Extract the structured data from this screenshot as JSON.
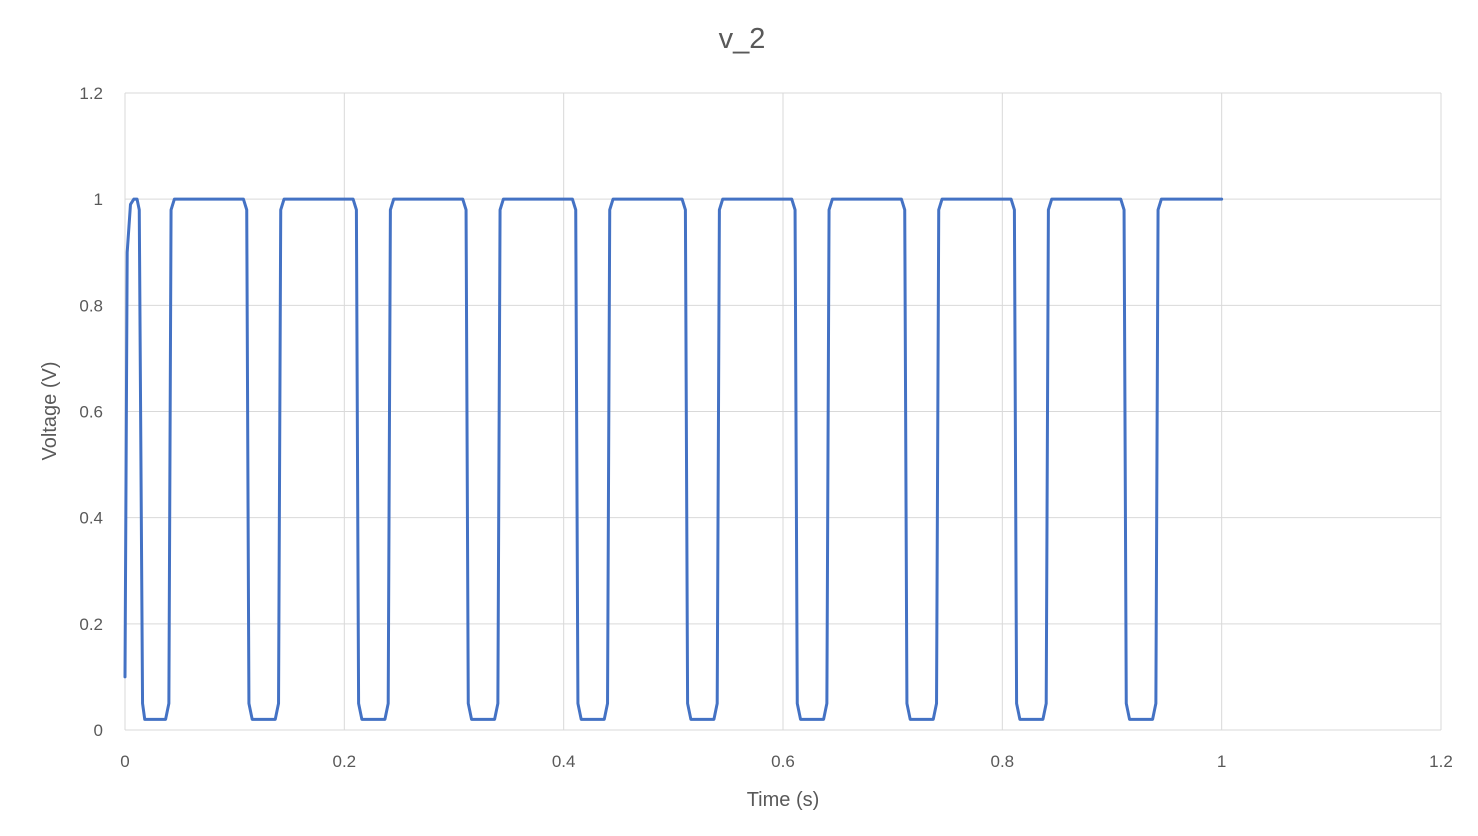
{
  "chart_data": {
    "type": "line",
    "title": "v_2",
    "xlabel": "Time (s)",
    "ylabel": "Voltage (V)",
    "xlim": [
      0,
      1.2
    ],
    "ylim": [
      0,
      1.2
    ],
    "x_ticks": [
      0,
      0.2,
      0.4,
      0.6,
      0.8,
      1,
      1.2
    ],
    "y_ticks": [
      0,
      0.2,
      0.4,
      0.6,
      0.8,
      1,
      1.2
    ],
    "x_tick_labels": [
      "0",
      "0.2",
      "0.4",
      "0.6",
      "0.8",
      "1",
      "1.2"
    ],
    "y_tick_labels": [
      "0",
      "0.2",
      "0.4",
      "0.6",
      "0.8",
      "1",
      "1.2"
    ],
    "grid": true,
    "legend": "none",
    "series": [
      {
        "color": "#4472c4",
        "x": [
          0,
          0.002,
          0.005,
          0.008,
          0.011,
          0.013,
          0.016,
          0.018,
          0.037,
          0.04,
          0.042,
          0.045,
          0.108,
          0.111,
          0.113,
          0.116,
          0.137,
          0.14,
          0.142,
          0.145,
          0.208,
          0.211,
          0.213,
          0.216,
          0.237,
          0.24,
          0.242,
          0.245,
          0.308,
          0.311,
          0.313,
          0.316,
          0.337,
          0.34,
          0.342,
          0.345,
          0.408,
          0.411,
          0.413,
          0.416,
          0.437,
          0.44,
          0.442,
          0.445,
          0.508,
          0.511,
          0.513,
          0.516,
          0.537,
          0.54,
          0.542,
          0.545,
          0.608,
          0.611,
          0.613,
          0.616,
          0.637,
          0.64,
          0.642,
          0.645,
          0.708,
          0.711,
          0.713,
          0.716,
          0.737,
          0.74,
          0.742,
          0.745,
          0.808,
          0.811,
          0.813,
          0.816,
          0.837,
          0.84,
          0.842,
          0.845,
          0.908,
          0.911,
          0.913,
          0.916,
          0.937,
          0.94,
          0.942,
          0.945,
          1.0
        ],
        "y": [
          0.1,
          0.9,
          0.99,
          1.0,
          1.0,
          0.98,
          0.05,
          0.02,
          0.02,
          0.05,
          0.98,
          1.0,
          1.0,
          0.98,
          0.05,
          0.02,
          0.02,
          0.05,
          0.98,
          1.0,
          1.0,
          0.98,
          0.05,
          0.02,
          0.02,
          0.05,
          0.98,
          1.0,
          1.0,
          0.98,
          0.05,
          0.02,
          0.02,
          0.05,
          0.98,
          1.0,
          1.0,
          0.98,
          0.05,
          0.02,
          0.02,
          0.05,
          0.98,
          1.0,
          1.0,
          0.98,
          0.05,
          0.02,
          0.02,
          0.05,
          0.98,
          1.0,
          1.0,
          0.98,
          0.05,
          0.02,
          0.02,
          0.05,
          0.98,
          1.0,
          1.0,
          0.98,
          0.05,
          0.02,
          0.02,
          0.05,
          0.98,
          1.0,
          1.0,
          0.98,
          0.05,
          0.02,
          0.02,
          0.05,
          0.98,
          1.0,
          1.0,
          0.98,
          0.05,
          0.02,
          0.02,
          0.05,
          0.98,
          1.0,
          1.0
        ]
      }
    ]
  }
}
